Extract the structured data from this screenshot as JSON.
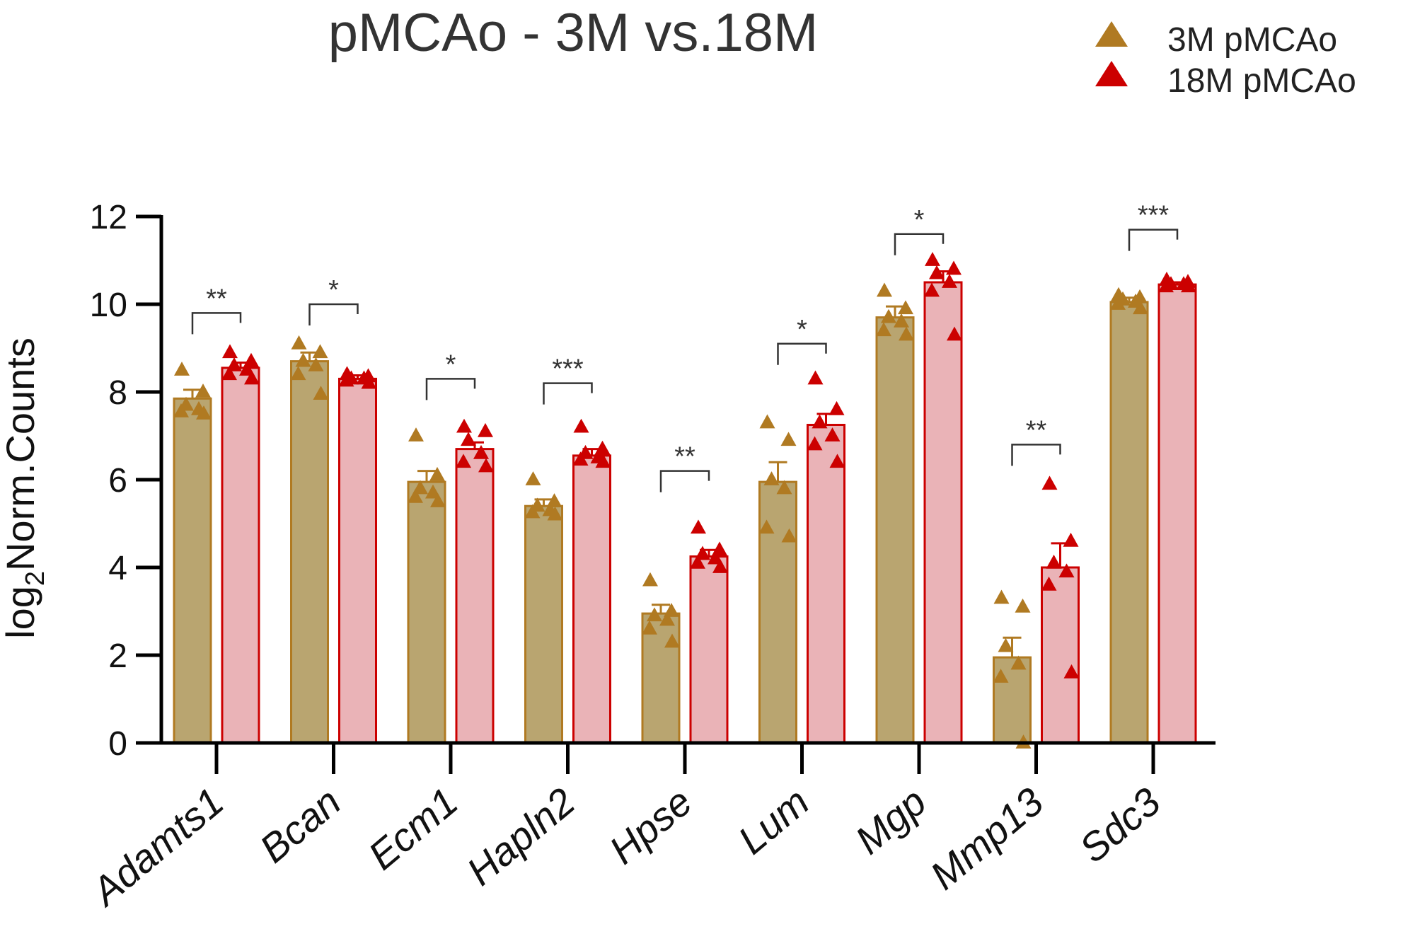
{
  "chart_data": {
    "type": "bar",
    "title": "pMCAo - 3M vs.18M",
    "xlabel": "",
    "ylabel": {
      "prefix": "log",
      "sub": "2",
      "suffix": "Norm.Counts"
    },
    "ylim": [
      0,
      12
    ],
    "yticks": [
      "0",
      "2",
      "4",
      "6",
      "8",
      "10",
      "12"
    ],
    "categories": [
      "Adamts1",
      "Bcan",
      "Ecm1",
      "Hapln2",
      "Hpse",
      "Lum",
      "Mgp",
      "Mmp13",
      "Sdc3"
    ],
    "series": [
      {
        "name": "3M pMCAo",
        "color": "#b07a22",
        "fill": "#b9a570",
        "values": [
          7.85,
          8.7,
          5.95,
          5.4,
          2.95,
          5.95,
          9.7,
          1.95,
          10.05
        ],
        "sem": [
          0.2,
          0.2,
          0.25,
          0.15,
          0.2,
          0.45,
          0.25,
          0.45,
          0.1
        ],
        "points": [
          [
            8.5,
            8.0,
            7.7,
            7.6,
            7.55,
            7.5
          ],
          [
            9.1,
            8.9,
            8.7,
            8.6,
            8.4,
            7.95
          ],
          [
            7.0,
            6.1,
            5.8,
            5.7,
            5.6,
            5.5
          ],
          [
            6.0,
            5.5,
            5.4,
            5.3,
            5.25,
            5.2
          ],
          [
            3.7,
            3.0,
            2.9,
            2.8,
            2.6,
            2.3
          ],
          [
            7.3,
            6.9,
            6.0,
            5.8,
            4.9,
            4.7
          ],
          [
            10.3,
            9.9,
            9.7,
            9.6,
            9.4,
            9.3
          ],
          [
            3.3,
            3.1,
            2.2,
            1.8,
            1.5,
            0.0
          ],
          [
            10.2,
            10.15,
            10.1,
            10.05,
            10.0,
            9.9
          ]
        ]
      },
      {
        "name": "18M pMCAo",
        "color": "#cc0000",
        "fill": "#eab3b7",
        "values": [
          8.55,
          8.3,
          6.7,
          6.55,
          4.25,
          7.25,
          10.5,
          4.0,
          10.45
        ],
        "sem": [
          0.12,
          0.08,
          0.15,
          0.15,
          0.15,
          0.25,
          0.25,
          0.55,
          0.05
        ],
        "points": [
          [
            8.9,
            8.7,
            8.6,
            8.5,
            8.4,
            8.3
          ],
          [
            8.4,
            8.35,
            8.3,
            8.3,
            8.25,
            8.2
          ],
          [
            7.2,
            7.1,
            6.9,
            6.6,
            6.4,
            6.3
          ],
          [
            7.2,
            6.7,
            6.6,
            6.5,
            6.45,
            6.4
          ],
          [
            4.9,
            4.4,
            4.3,
            4.2,
            4.1,
            4.0
          ],
          [
            8.3,
            7.6,
            7.3,
            7.0,
            6.8,
            6.4
          ],
          [
            11.0,
            10.8,
            10.7,
            10.5,
            10.3,
            9.3
          ],
          [
            5.9,
            4.6,
            4.1,
            3.9,
            3.6,
            1.6
          ],
          [
            10.55,
            10.5,
            10.45,
            10.45,
            10.4,
            10.4
          ]
        ]
      }
    ],
    "significance": [
      "**",
      "*",
      "*",
      "***",
      "**",
      "*",
      "*",
      "**",
      "***"
    ],
    "significance_bracket_y": [
      9.8,
      10.0,
      8.3,
      8.2,
      6.2,
      9.1,
      11.6,
      6.8,
      11.7
    ],
    "legend": {
      "position": "top-right"
    }
  }
}
